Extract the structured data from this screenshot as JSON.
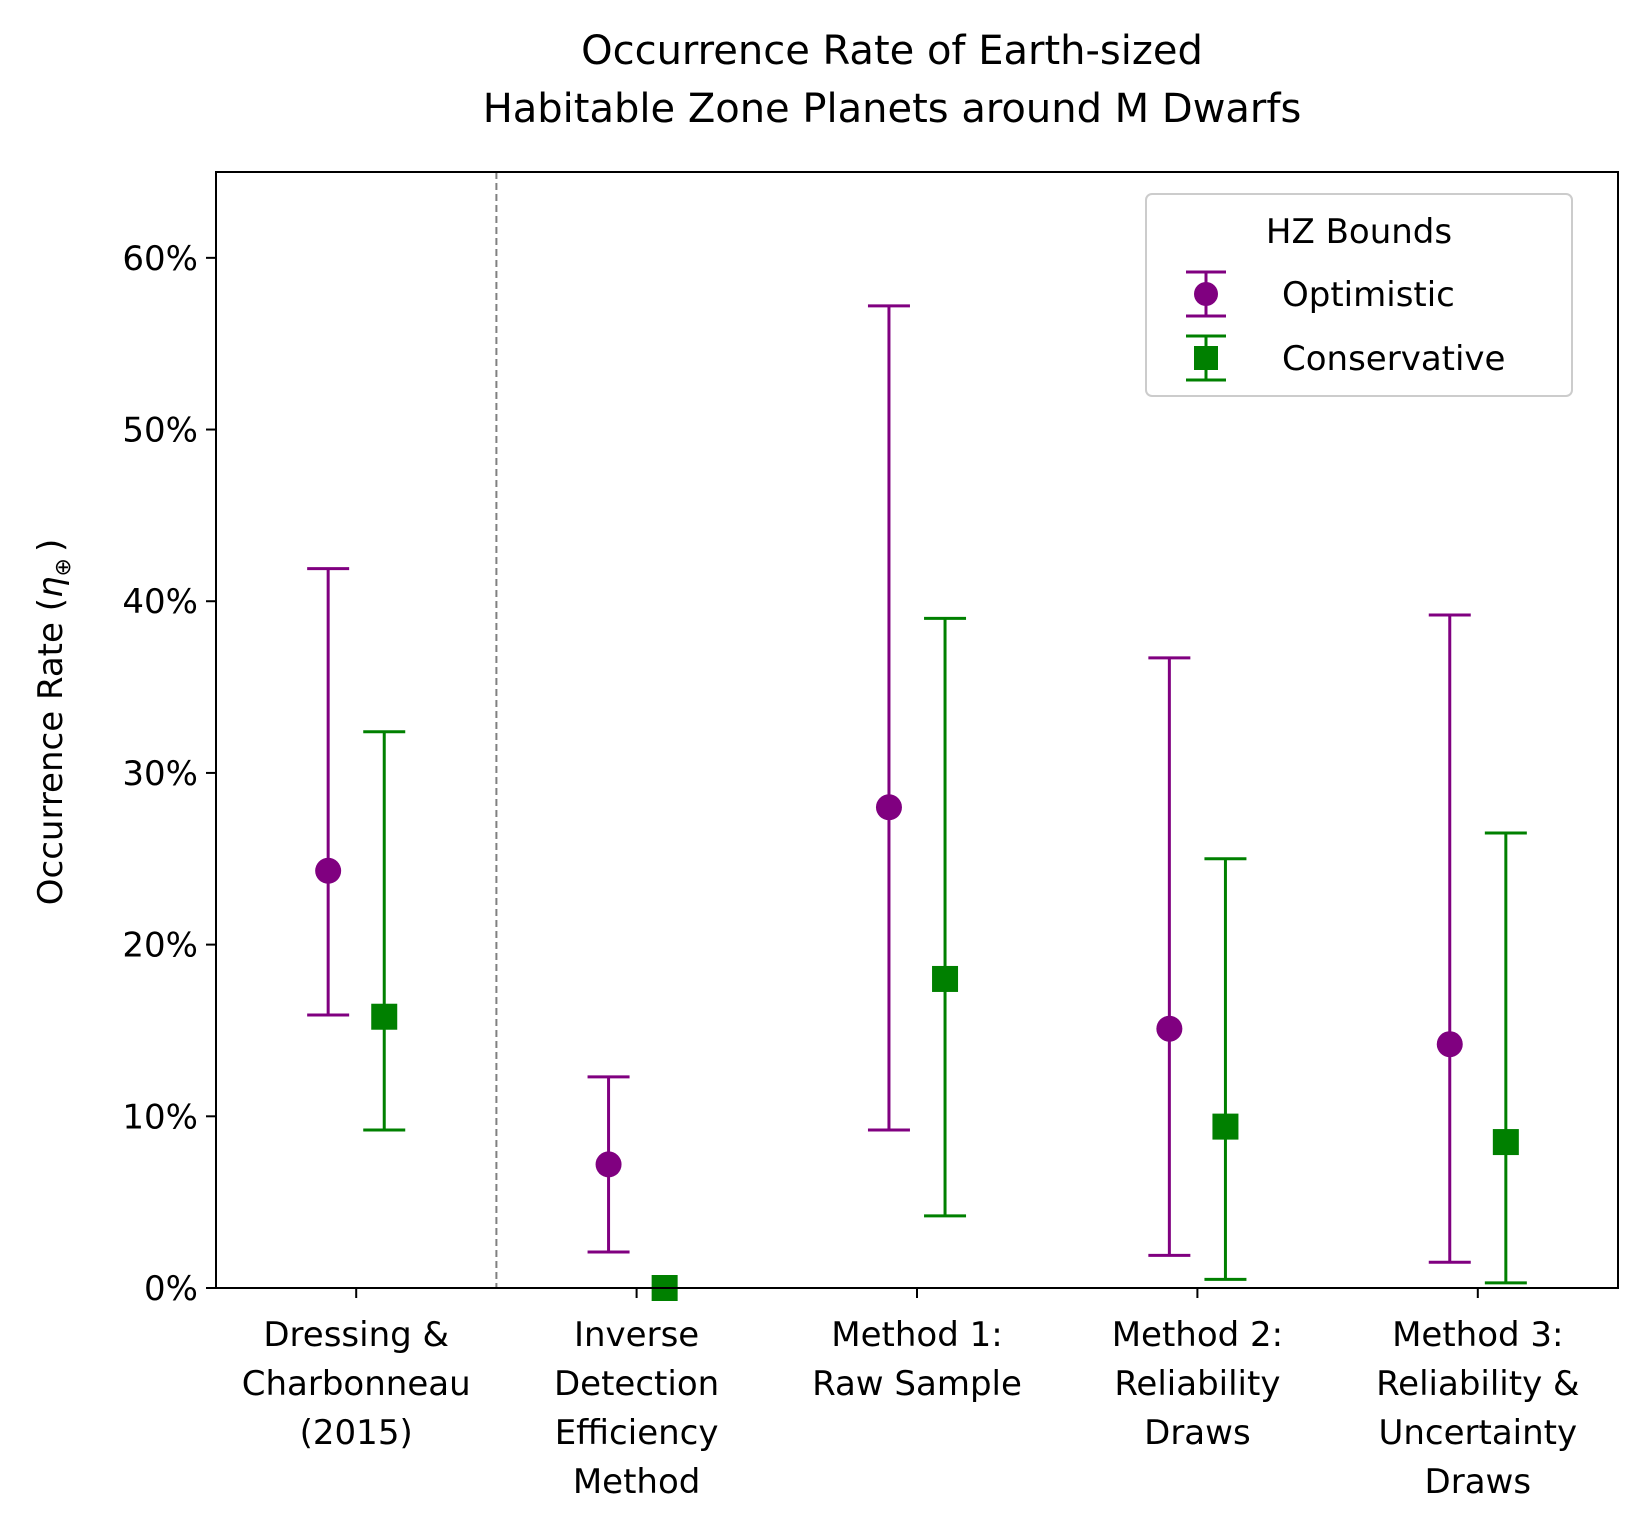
{
  "chart_data": {
    "type": "errorbar",
    "title_lines": [
      "Occurrence Rate of Earth-sized",
      "Habitable Zone Planets around M Dwarfs"
    ],
    "ylabel_main": "Occurrence Rate (",
    "ylabel_symbol": "η",
    "ylabel_subscript": "⊕",
    "ylabel_close": ")",
    "xlabel": "",
    "ylim": [
      0,
      0.65
    ],
    "yticks": [
      0,
      0.1,
      0.2,
      0.3,
      0.4,
      0.5,
      0.6
    ],
    "ytick_labels": [
      "0%",
      "10%",
      "20%",
      "30%",
      "40%",
      "50%",
      "60%"
    ],
    "categories": [
      [
        "Dressing &",
        "Charbonneau",
        "(2015)"
      ],
      [
        "Inverse",
        "Detection",
        "Efficiency",
        "Method"
      ],
      [
        "Method 1:",
        "Raw Sample"
      ],
      [
        "Method 2:",
        "Reliability",
        "Draws"
      ],
      [
        "Method 3:",
        "Reliability &",
        "Uncertainty",
        "Draws"
      ]
    ],
    "separator_after_category": 0,
    "legend": {
      "title": "HZ Bounds",
      "position": "top-right"
    },
    "series": [
      {
        "name": "Optimistic",
        "color": "#800080",
        "marker": "circle",
        "offset": -0.1,
        "values": [
          0.243,
          0.072,
          0.28,
          0.151,
          0.142
        ],
        "lower": [
          0.159,
          0.021,
          0.092,
          0.019,
          0.015
        ],
        "upper": [
          0.419,
          0.123,
          0.572,
          0.367,
          0.392
        ]
      },
      {
        "name": "Conservative",
        "color": "#008000",
        "marker": "square",
        "offset": 0.1,
        "values": [
          0.158,
          0.0,
          0.18,
          0.094,
          0.085
        ],
        "lower": [
          0.092,
          0.0,
          0.042,
          0.005,
          0.003
        ],
        "upper": [
          0.324,
          0.0,
          0.39,
          0.25,
          0.265
        ]
      }
    ]
  }
}
